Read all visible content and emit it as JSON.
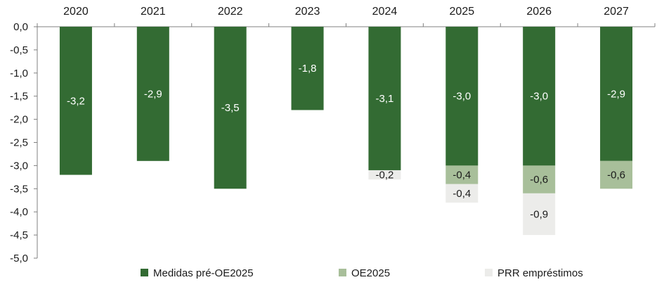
{
  "chart_data": {
    "type": "bar",
    "stacked": true,
    "categories": [
      "2020",
      "2021",
      "2022",
      "2023",
      "2024",
      "2025",
      "2026",
      "2027"
    ],
    "series": [
      {
        "name": "Medidas pré-OE2025",
        "color": "#336b33",
        "values": [
          -3.2,
          -2.9,
          -3.5,
          -1.8,
          -3.1,
          -3.0,
          -3.0,
          -2.9
        ],
        "labels": [
          "-3,2",
          "-2,9",
          "-3,5",
          "-1,8",
          "-3,1",
          "-3,0",
          "-3,0",
          "-2,9"
        ]
      },
      {
        "name": "OE2025",
        "color": "#a8bf9a",
        "values": [
          null,
          null,
          null,
          null,
          null,
          -0.4,
          -0.6,
          -0.6
        ],
        "labels": [
          "",
          "",
          "",
          "",
          "",
          "-0,4",
          "-0,6",
          "-0,6"
        ]
      },
      {
        "name": "PRR empréstimos",
        "color": "#ececea",
        "values": [
          null,
          null,
          null,
          null,
          -0.2,
          -0.4,
          -0.9,
          null
        ],
        "labels": [
          "",
          "",
          "",
          "",
          "-0,2",
          "-0,4",
          "-0,9",
          ""
        ]
      }
    ],
    "ylim": [
      -5.0,
      0.0
    ],
    "yticks": [
      "0,0",
      "-0,5",
      "-1,0",
      "-1,5",
      "-2,0",
      "-2,5",
      "-3,0",
      "-3,5",
      "-4,0",
      "-4,5",
      "-5,0"
    ],
    "ytick_values": [
      0,
      -0.5,
      -1.0,
      -1.5,
      -2.0,
      -2.5,
      -3.0,
      -3.5,
      -4.0,
      -4.5,
      -5.0
    ],
    "xaxis_position": "top",
    "legend_position": "bottom",
    "grid": false,
    "title": "",
    "xlabel": "",
    "ylabel": ""
  }
}
